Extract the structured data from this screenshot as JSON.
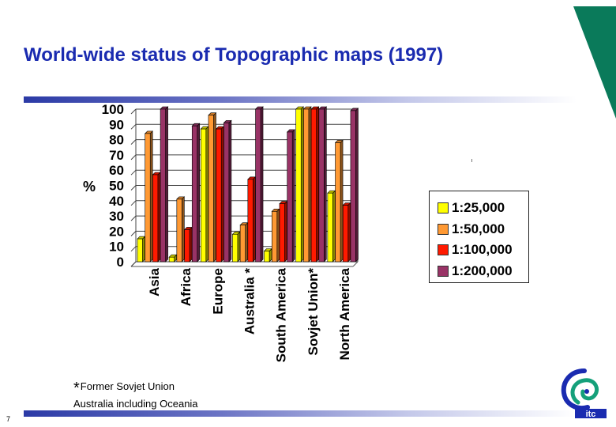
{
  "slide": {
    "title": "World-wide status of Topographic maps (1997)",
    "footnote_1_symbol": "*",
    "footnote_1": "Former Sovjet Union",
    "footnote_2": "Australia including Oceania",
    "page_number": "7",
    "logo_text": "itc"
  },
  "colors": {
    "title": "#1a2bb0",
    "accent_green": "#0a7a5a",
    "rule_blue": "#2b3aa6",
    "logo_blue": "#1a2bb0",
    "logo_green": "#15a07a"
  },
  "chart_data": {
    "type": "bar",
    "style": "3d clustered columns",
    "categories": [
      "Asia",
      "Africa",
      "Europe",
      "Australia *",
      "South America",
      "Sovjet Union*",
      "North America"
    ],
    "series": [
      {
        "name": "1:25,000",
        "color": "#ffff00",
        "values": [
          15,
          3,
          87,
          18,
          7,
          100,
          45
        ]
      },
      {
        "name": "1:50,000",
        "color": "#ff9933",
        "values": [
          84,
          41,
          96,
          24,
          33,
          100,
          78
        ]
      },
      {
        "name": "1:100,000",
        "color": "#ff1a00",
        "values": [
          57,
          21,
          87,
          54,
          38,
          100,
          37
        ]
      },
      {
        "name": "1:200,000",
        "color": "#993366",
        "values": [
          100,
          89,
          91,
          100,
          85,
          100,
          99
        ]
      }
    ],
    "ylabel": "%",
    "ylim": [
      0,
      100
    ],
    "yticks": [
      "0",
      "10",
      "20",
      "30",
      "40",
      "50",
      "60",
      "70",
      "80",
      "90",
      "100"
    ],
    "grid": true,
    "legend_position": "right"
  }
}
